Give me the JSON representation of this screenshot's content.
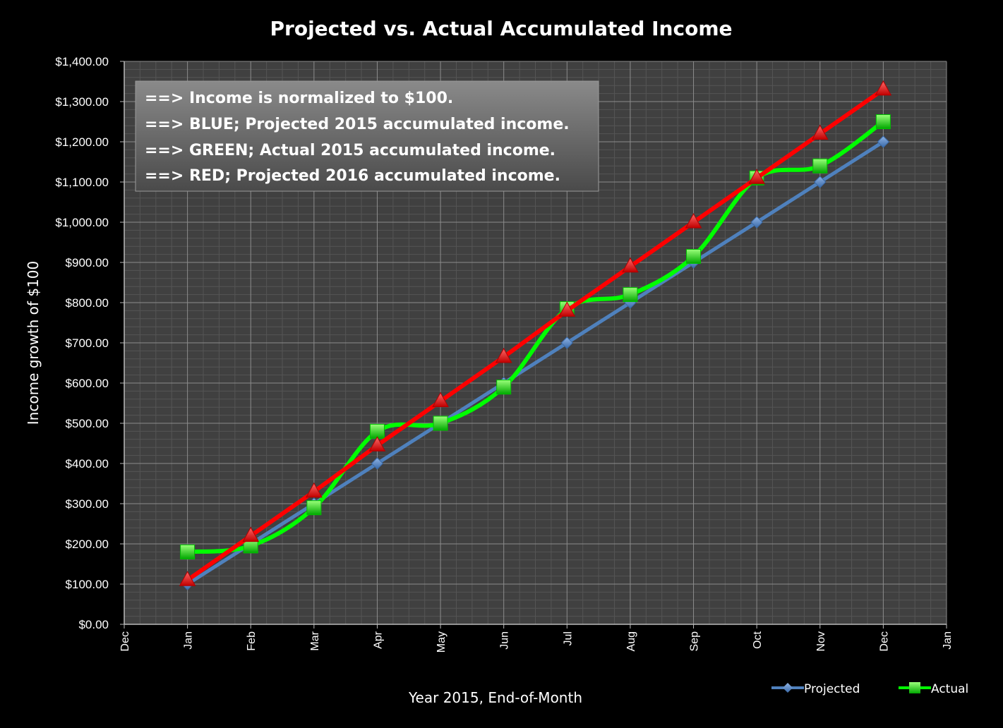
{
  "chart_data": {
    "type": "line",
    "title": "Projected vs. Actual Accumulated Income",
    "xlabel": "Year 2015, End-of-Month",
    "ylabel": "Income  growth of $100",
    "x_tick_labels": [
      "Dec",
      "Jan",
      "Feb",
      "Mar",
      "Apr",
      "May",
      "Jun",
      "Jul",
      "Aug",
      "Sep",
      "Oct",
      "Nov",
      "Dec",
      "Jan"
    ],
    "categories": [
      "Jan",
      "Feb",
      "Mar",
      "Apr",
      "May",
      "Jun",
      "Jul",
      "Aug",
      "Sep",
      "Oct",
      "Nov",
      "Dec"
    ],
    "ylim": [
      0,
      1400
    ],
    "y_ticks": [
      0,
      100,
      200,
      300,
      400,
      500,
      600,
      700,
      800,
      900,
      1000,
      1100,
      1200,
      1300,
      1400
    ],
    "y_tick_labels": [
      "$0.00",
      "$100.00",
      "$200.00",
      "$300.00",
      "$400.00",
      "$500.00",
      "$600.00",
      "$700.00",
      "$800.00",
      "$900.00",
      "$1,000.00",
      "$1,100.00",
      "$1,200.00",
      "$1,300.00",
      "$1,400.00"
    ],
    "grid": true,
    "legend_position": "bottom-right",
    "series": [
      {
        "name": "Projected",
        "color": "#4f81bd",
        "marker": "diamond",
        "values": [
          100,
          200,
          300,
          400,
          500,
          600,
          700,
          800,
          900,
          1000,
          1100,
          1200
        ]
      },
      {
        "name": "Actual",
        "color": "#00ff00",
        "marker": "square",
        "values": [
          180,
          195,
          290,
          480,
          500,
          590,
          785,
          820,
          915,
          1110,
          1140,
          1250
        ]
      },
      {
        "name": "",
        "color": "#ff0000",
        "marker": "triangle",
        "values": [
          110,
          220,
          330,
          445,
          555,
          665,
          780,
          890,
          1000,
          1110,
          1220,
          1330
        ]
      }
    ],
    "annotations": [
      "==> Income is normalized to $100.",
      "==> BLUE; Projected 2015 accumulated income.",
      "==> GREEN; Actual 2015 accumulated income.",
      "==> RED; Projected 2016 accumulated income."
    ]
  }
}
